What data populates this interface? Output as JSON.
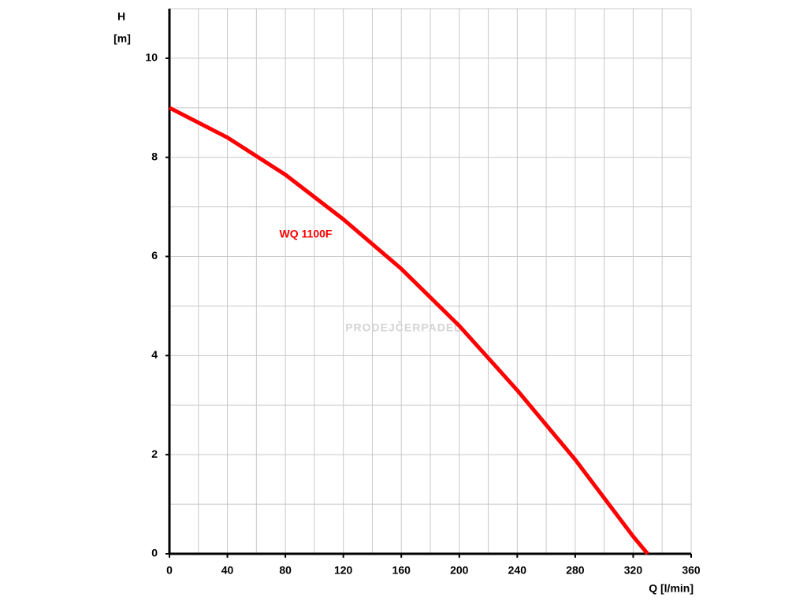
{
  "chart_data": {
    "type": "line",
    "y_label": "H",
    "y_unit": "[m]",
    "x_label": "Q [l/min]",
    "annotation": "WQ 1100F",
    "watermark": "PRODEJČERPADEL",
    "x": [
      0,
      40,
      80,
      120,
      160,
      200,
      240,
      280,
      320,
      330
    ],
    "series": [
      {
        "name": "WQ 1100F",
        "color": "#ff0000",
        "values": [
          9,
          8.4,
          7.65,
          6.75,
          5.75,
          4.6,
          3.3,
          1.9,
          0.35,
          0
        ]
      }
    ],
    "xlim": [
      0,
      360
    ],
    "xticks": [
      0,
      40,
      80,
      120,
      160,
      200,
      240,
      280,
      320,
      360
    ],
    "ylim": [
      0,
      11
    ],
    "yticks": [
      0,
      2,
      4,
      6,
      8,
      10
    ],
    "xgrid": [
      20,
      60,
      100,
      140,
      180,
      220,
      260,
      300,
      340
    ],
    "ygrid": [
      1,
      3,
      5,
      7,
      9,
      11
    ],
    "grid": true
  }
}
